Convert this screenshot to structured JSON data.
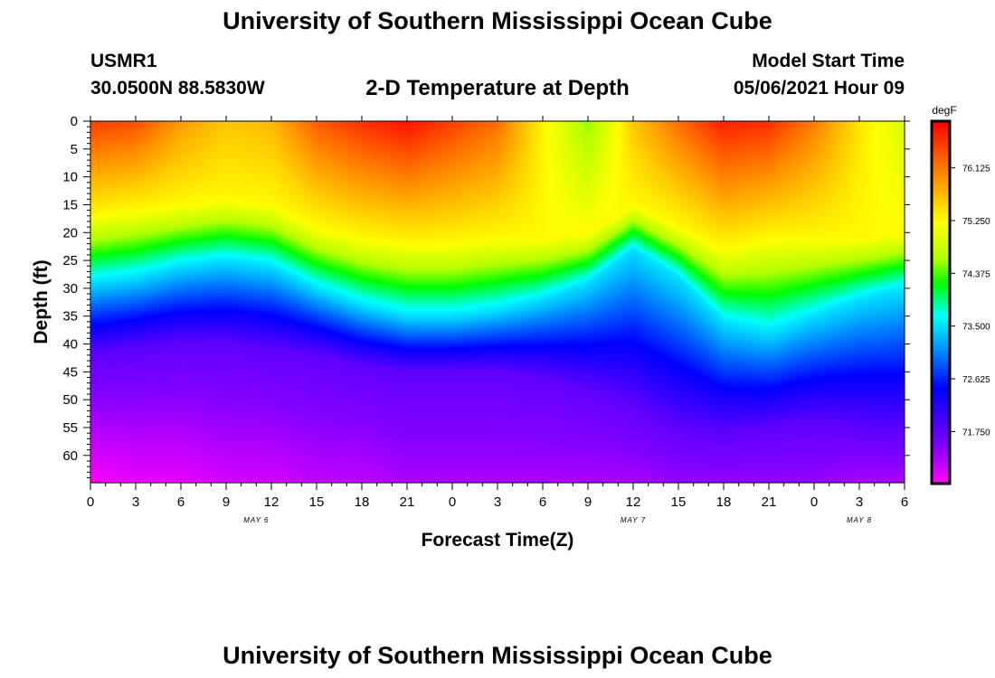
{
  "page": {
    "title_top": "University of Southern Mississippi Ocean Cube",
    "title_bottom": "University of Southern Mississippi Ocean Cube",
    "station_id": "USMR1",
    "station_coords": "30.0500N  88.5830W",
    "product_title": "2-D Temperature at Depth",
    "model_start_label": "Model Start Time",
    "model_start_value": "05/06/2021 Hour 09"
  },
  "chart_data": {
    "type": "heatmap",
    "title": "2-D Temperature at Depth",
    "xlabel": "Forecast Time(Z)",
    "ylabel": "Depth (ft)",
    "x_tick_labels": [
      "0",
      "3",
      "6",
      "9",
      "12",
      "15",
      "18",
      "21",
      "0",
      "3",
      "6",
      "9",
      "12",
      "15",
      "18",
      "21",
      "0",
      "3",
      "6"
    ],
    "x_range_hours": [
      0,
      54
    ],
    "date_labels": [
      {
        "text": "MAY 6",
        "hour": 11
      },
      {
        "text": "MAY 7",
        "hour": 36
      },
      {
        "text": "MAY 8",
        "hour": 51
      }
    ],
    "y_tick_labels": [
      "0",
      "5",
      "10",
      "15",
      "20",
      "25",
      "30",
      "35",
      "40",
      "45",
      "50",
      "55",
      "60"
    ],
    "y_range_ft": [
      0,
      64
    ],
    "colorbar": {
      "unit": "degF",
      "min": 70.9,
      "max": 76.9,
      "tick_values": [
        76.125,
        75.25,
        74.375,
        73.5,
        72.625,
        71.75
      ],
      "tick_labels": [
        "76.125",
        "75.250",
        "74.375",
        "73.500",
        "72.625",
        "71.750"
      ]
    },
    "profile_hours": [
      0,
      3,
      6,
      9,
      12,
      15,
      18,
      21,
      24,
      27,
      30,
      33,
      36,
      39,
      42,
      45,
      48,
      51,
      54
    ],
    "isotherm_depths_ft": {
      "75.25": [
        17,
        16,
        15,
        14,
        15,
        19,
        21,
        22,
        22,
        21,
        21,
        20,
        15,
        19,
        23,
        21,
        21,
        21,
        20
      ],
      "73.5": [
        29,
        28,
        26,
        25,
        26,
        30,
        33,
        35,
        35,
        34,
        32,
        29,
        23,
        28,
        36,
        38,
        35,
        32,
        30
      ],
      "71.75": [
        42,
        41,
        40,
        40,
        41,
        42,
        44,
        45,
        45,
        45,
        46,
        48,
        51,
        55,
        56,
        55,
        54,
        55,
        56
      ]
    },
    "surface_temp_degF": [
      76.5,
      76.4,
      75.9,
      75.6,
      75.7,
      76.3,
      76.6,
      76.8,
      76.5,
      76.2,
      75.3,
      74.5,
      75.6,
      76.2,
      76.7,
      76.6,
      76.1,
      75.4,
      74.9
    ],
    "bottom_temp_degF": [
      70.9,
      71.0,
      71.0,
      71.1,
      71.1,
      71.2,
      71.2,
      71.3,
      71.3,
      71.3,
      71.3,
      71.3,
      71.3,
      71.4,
      71.4,
      71.4,
      71.4,
      71.3,
      71.3
    ]
  }
}
